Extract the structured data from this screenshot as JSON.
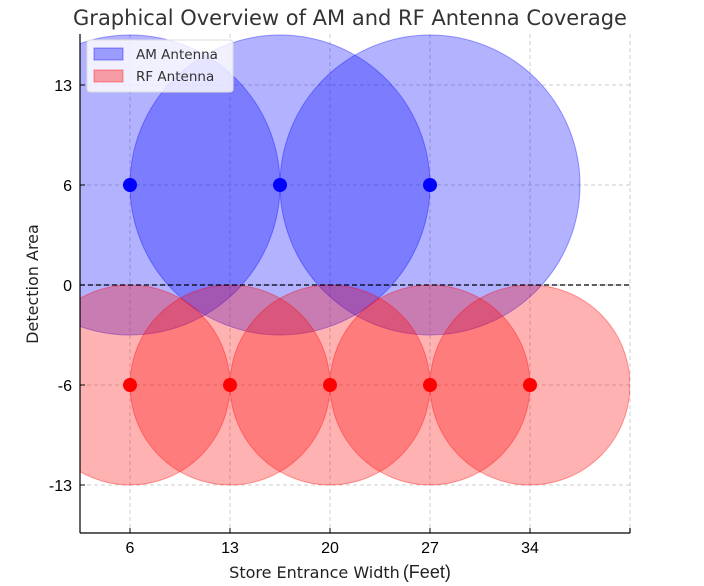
{
  "chart_data": {
    "type": "scatter",
    "title": "Graphical Overview of AM and RF Antenna Coverage",
    "xlabel": "Store Entrance Width",
    "xlabel_unit": "(Feet)",
    "ylabel": "Detection Area",
    "xlim": [
      2.5,
      41
    ],
    "x_ticks": [
      6,
      13,
      20,
      27,
      34
    ],
    "y_ticks": [
      13,
      6,
      0,
      -6,
      -13
    ],
    "y_tick_labels": [
      "13",
      "6",
      "0",
      "-6",
      "-13"
    ],
    "grid": true,
    "reference_line": {
      "y": 0,
      "style": "dashed",
      "color": "#000000"
    },
    "legend": {
      "placement": "top-left",
      "entries": [
        "AM Antenna",
        "RF Antenna"
      ]
    },
    "series": [
      {
        "name": "AM Antenna",
        "color": "#0000ff",
        "fill_alpha": 0.3,
        "coverage_radius": 10.5,
        "points": [
          {
            "x": 6,
            "y": 6
          },
          {
            "x": 16.5,
            "y": 6
          },
          {
            "x": 27,
            "y": 6
          }
        ]
      },
      {
        "name": "RF Antenna",
        "color": "#ff0000",
        "fill_alpha": 0.3,
        "coverage_radius": 7,
        "points": [
          {
            "x": 6,
            "y": -6
          },
          {
            "x": 13,
            "y": -6
          },
          {
            "x": 20,
            "y": -6
          },
          {
            "x": 27,
            "y": -6
          },
          {
            "x": 34,
            "y": -6
          }
        ]
      }
    ]
  }
}
